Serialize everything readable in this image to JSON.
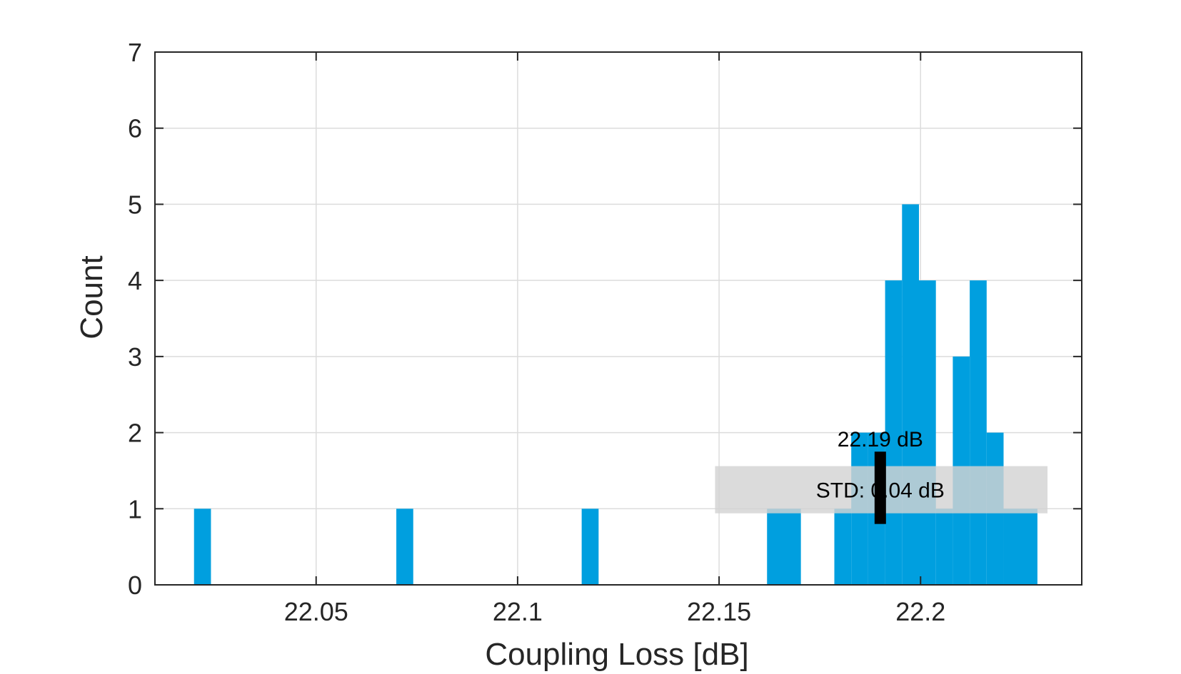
{
  "chart_data": {
    "type": "bar",
    "title": "",
    "xlabel": "Coupling Loss [dB]",
    "ylabel": "Count",
    "xlim": [
      22.01,
      22.24
    ],
    "ylim": [
      0,
      7
    ],
    "grid": true,
    "x_ticks": [
      22.05,
      22.1,
      22.15,
      22.2
    ],
    "x_tick_labels": [
      "22.05",
      "22.1",
      "22.15",
      "22.2"
    ],
    "y_ticks": [
      0,
      1,
      2,
      3,
      4,
      5,
      6,
      7
    ],
    "y_tick_labels": [
      "0",
      "1",
      "2",
      "3",
      "4",
      "5",
      "6",
      "7"
    ],
    "bar_color": "#009fdf",
    "bins": [
      {
        "x0": 22.0197,
        "x1": 22.0239,
        "count": 1
      },
      {
        "x0": 22.0699,
        "x1": 22.0741,
        "count": 1
      },
      {
        "x0": 22.1159,
        "x1": 22.1201,
        "count": 1
      },
      {
        "x0": 22.1619,
        "x1": 22.1703,
        "count": 1
      },
      {
        "x0": 22.1786,
        "x1": 22.1828,
        "count": 1
      },
      {
        "x0": 22.1828,
        "x1": 22.187,
        "count": 2
      },
      {
        "x0": 22.187,
        "x1": 22.1912,
        "count": 2
      },
      {
        "x0": 22.1912,
        "x1": 22.1954,
        "count": 4
      },
      {
        "x0": 22.1954,
        "x1": 22.1996,
        "count": 5
      },
      {
        "x0": 22.1996,
        "x1": 22.2038,
        "count": 4
      },
      {
        "x0": 22.2038,
        "x1": 22.208,
        "count": 1
      },
      {
        "x0": 22.208,
        "x1": 22.2122,
        "count": 3
      },
      {
        "x0": 22.2122,
        "x1": 22.2164,
        "count": 4
      },
      {
        "x0": 22.2164,
        "x1": 22.2206,
        "count": 2
      },
      {
        "x0": 22.2206,
        "x1": 22.229,
        "count": 1
      }
    ],
    "annotations": {
      "mean_value": 22.19,
      "mean_label": "22.19 dB",
      "std_label": "STD: 0.04 dB",
      "std_box_color": "#d3d3d3",
      "marker_color": "#000000"
    }
  }
}
